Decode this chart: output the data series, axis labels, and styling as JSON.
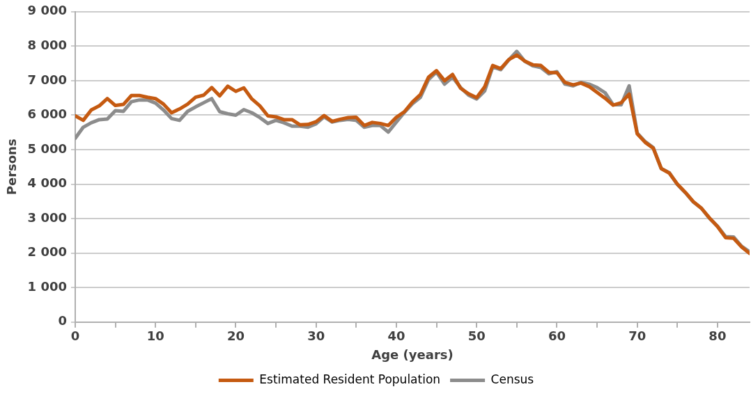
{
  "chart_data": {
    "type": "line",
    "xlabel": "Age (years)",
    "ylabel": "Persons",
    "x": [
      0,
      1,
      2,
      3,
      4,
      5,
      6,
      7,
      8,
      9,
      10,
      11,
      12,
      13,
      14,
      15,
      16,
      17,
      18,
      19,
      20,
      21,
      22,
      23,
      24,
      25,
      26,
      27,
      28,
      29,
      30,
      31,
      32,
      33,
      34,
      35,
      36,
      37,
      38,
      39,
      40,
      41,
      42,
      43,
      44,
      45,
      46,
      47,
      48,
      49,
      50,
      51,
      52,
      53,
      54,
      55,
      56,
      57,
      58,
      59,
      60,
      61,
      62,
      63,
      64,
      65,
      66,
      67,
      68,
      69,
      70,
      71,
      72,
      73,
      74,
      75,
      76,
      77,
      78,
      79,
      80,
      81,
      82,
      83,
      84
    ],
    "series": [
      {
        "name": "Estimated Resident Population",
        "color": "#c55a11",
        "values": [
          5980,
          5850,
          6150,
          6270,
          6480,
          6280,
          6310,
          6570,
          6570,
          6520,
          6480,
          6320,
          6070,
          6180,
          6320,
          6520,
          6580,
          6800,
          6560,
          6840,
          6690,
          6790,
          6470,
          6270,
          5980,
          5950,
          5870,
          5870,
          5720,
          5730,
          5810,
          5990,
          5820,
          5880,
          5930,
          5940,
          5700,
          5790,
          5760,
          5700,
          5940,
          6100,
          6380,
          6600,
          7100,
          7290,
          7000,
          7180,
          6780,
          6620,
          6510,
          6820,
          7440,
          7350,
          7610,
          7740,
          7570,
          7460,
          7440,
          7240,
          7230,
          6950,
          6880,
          6930,
          6830,
          6660,
          6490,
          6290,
          6360,
          6610,
          5460,
          5210,
          5040,
          4450,
          4320,
          4000,
          3760,
          3490,
          3300,
          3020,
          2770,
          2450,
          2430,
          2180,
          1990
        ]
      },
      {
        "name": "Census",
        "color": "#8c8c8c",
        "values": [
          5330,
          5650,
          5780,
          5870,
          5890,
          6130,
          6110,
          6390,
          6440,
          6440,
          6350,
          6150,
          5900,
          5850,
          6110,
          6240,
          6360,
          6480,
          6100,
          6040,
          6000,
          6160,
          6070,
          5930,
          5760,
          5850,
          5780,
          5680,
          5680,
          5650,
          5750,
          5950,
          5800,
          5850,
          5880,
          5850,
          5650,
          5700,
          5700,
          5510,
          5800,
          6080,
          6330,
          6520,
          7030,
          7250,
          6900,
          7100,
          6800,
          6580,
          6470,
          6700,
          7400,
          7320,
          7600,
          7850,
          7560,
          7430,
          7380,
          7200,
          7260,
          6900,
          6850,
          6950,
          6900,
          6800,
          6650,
          6300,
          6300,
          6850,
          5480,
          5230,
          5060,
          4450,
          4330,
          3990,
          3750,
          3480,
          3300,
          3010,
          2780,
          2480,
          2470,
          2200,
          2040
        ]
      }
    ],
    "xlim": [
      0,
      84
    ],
    "xticks": [
      0,
      {
        "value": 5,
        "label": null
      },
      10,
      {
        "value": 15,
        "label": null
      },
      20,
      {
        "value": 25,
        "label": null
      },
      30,
      {
        "value": 35,
        "label": null
      },
      40,
      {
        "value": 45,
        "label": null
      },
      50,
      {
        "value": 55,
        "label": null
      },
      60,
      {
        "value": 65,
        "label": null
      },
      70,
      {
        "value": 75,
        "label": null
      },
      80
    ],
    "ylim": [
      0,
      9000
    ],
    "yticks": [
      0,
      {
        "value": 1000,
        "label": "1 000"
      },
      {
        "value": 2000,
        "label": "2 000"
      },
      {
        "value": 3000,
        "label": "3 000"
      },
      {
        "value": 4000,
        "label": "4 000"
      },
      {
        "value": 5000,
        "label": "5 000"
      },
      {
        "value": 6000,
        "label": "6 000"
      },
      {
        "value": 7000,
        "label": "7 000"
      },
      {
        "value": 8000,
        "label": "8 000"
      },
      {
        "value": 9000,
        "label": "9 000"
      }
    ],
    "grid": "y",
    "legend": "bottom",
    "marker": "none",
    "line_style": "solid"
  }
}
